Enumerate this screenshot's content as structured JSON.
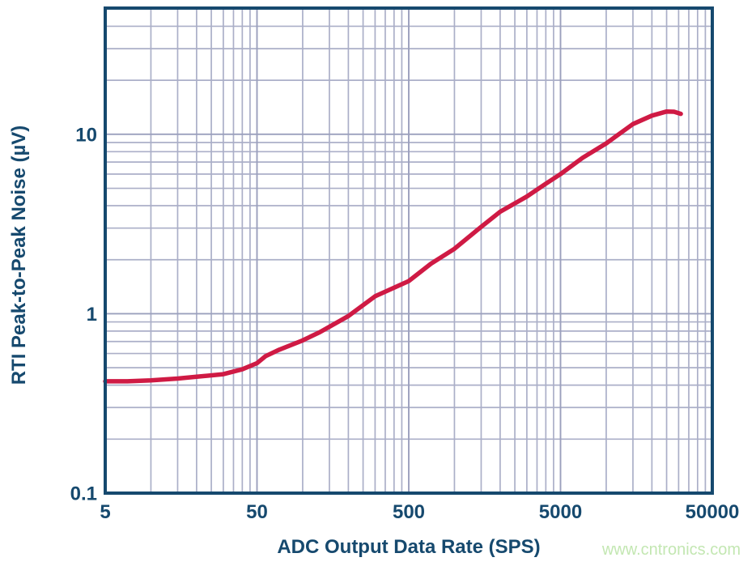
{
  "colors": {
    "background": "#ffffff",
    "axis_and_text": "#16496e",
    "grid_minor": "#abafc8",
    "grid_major": "#9ba0bd",
    "curve": "#cf1a44",
    "watermark": "#c3e7b2"
  },
  "watermark": {
    "text": "www.cntronics.com"
  },
  "chart_data": {
    "type": "line",
    "title": "",
    "xlabel": "ADC Output Data Rate (SPS)",
    "ylabel": "RTI Peak-to-Peak Noise (µV)",
    "x_scale": "log",
    "y_scale": "log",
    "xlim": [
      5,
      50000
    ],
    "ylim": [
      0.1,
      50.5
    ],
    "grid": "log major + minor, full box border",
    "legend": "none",
    "x_ticks": [
      5,
      50,
      500,
      5000,
      50000
    ],
    "x_tick_labels": [
      "5",
      "50",
      "500",
      "5000",
      "50000"
    ],
    "y_ticks": [
      0.1,
      1,
      10
    ],
    "y_tick_labels": [
      "0.1",
      "1",
      "10"
    ],
    "x_major_gridlines": [
      50,
      500,
      5000
    ],
    "x_minor_gridlines": [
      10,
      15,
      20,
      25,
      30,
      35,
      40,
      45,
      100,
      150,
      200,
      250,
      300,
      350,
      400,
      450,
      1000,
      1500,
      2000,
      2500,
      3000,
      3500,
      4000,
      4500,
      10000,
      15000,
      20000,
      25000,
      30000,
      35000,
      40000,
      45000
    ],
    "y_major_gridlines": [
      1,
      10
    ],
    "y_minor_gridlines": [
      0.2,
      0.3,
      0.4,
      0.5,
      0.6,
      0.7,
      0.8,
      0.9,
      2,
      3,
      4,
      5,
      6,
      7,
      8,
      9,
      20,
      30,
      40,
      50
    ],
    "series": [
      {
        "name": "rti-peak-to-peak-noise",
        "x": [
          5,
          7,
          10,
          15,
          20,
          30,
          40,
          50,
          57,
          70,
          100,
          130,
          200,
          300,
          500,
          700,
          1000,
          1500,
          2000,
          3000,
          4000,
          5000,
          7000,
          10000,
          15000,
          20000,
          25000,
          28000,
          31000
        ],
        "y": [
          0.42,
          0.42,
          0.425,
          0.435,
          0.445,
          0.46,
          0.49,
          0.53,
          0.58,
          0.63,
          0.71,
          0.79,
          0.97,
          1.25,
          1.52,
          1.9,
          2.3,
          3.05,
          3.7,
          4.5,
          5.3,
          6.0,
          7.4,
          8.9,
          11.4,
          12.7,
          13.4,
          13.35,
          13.0
        ]
      }
    ]
  }
}
